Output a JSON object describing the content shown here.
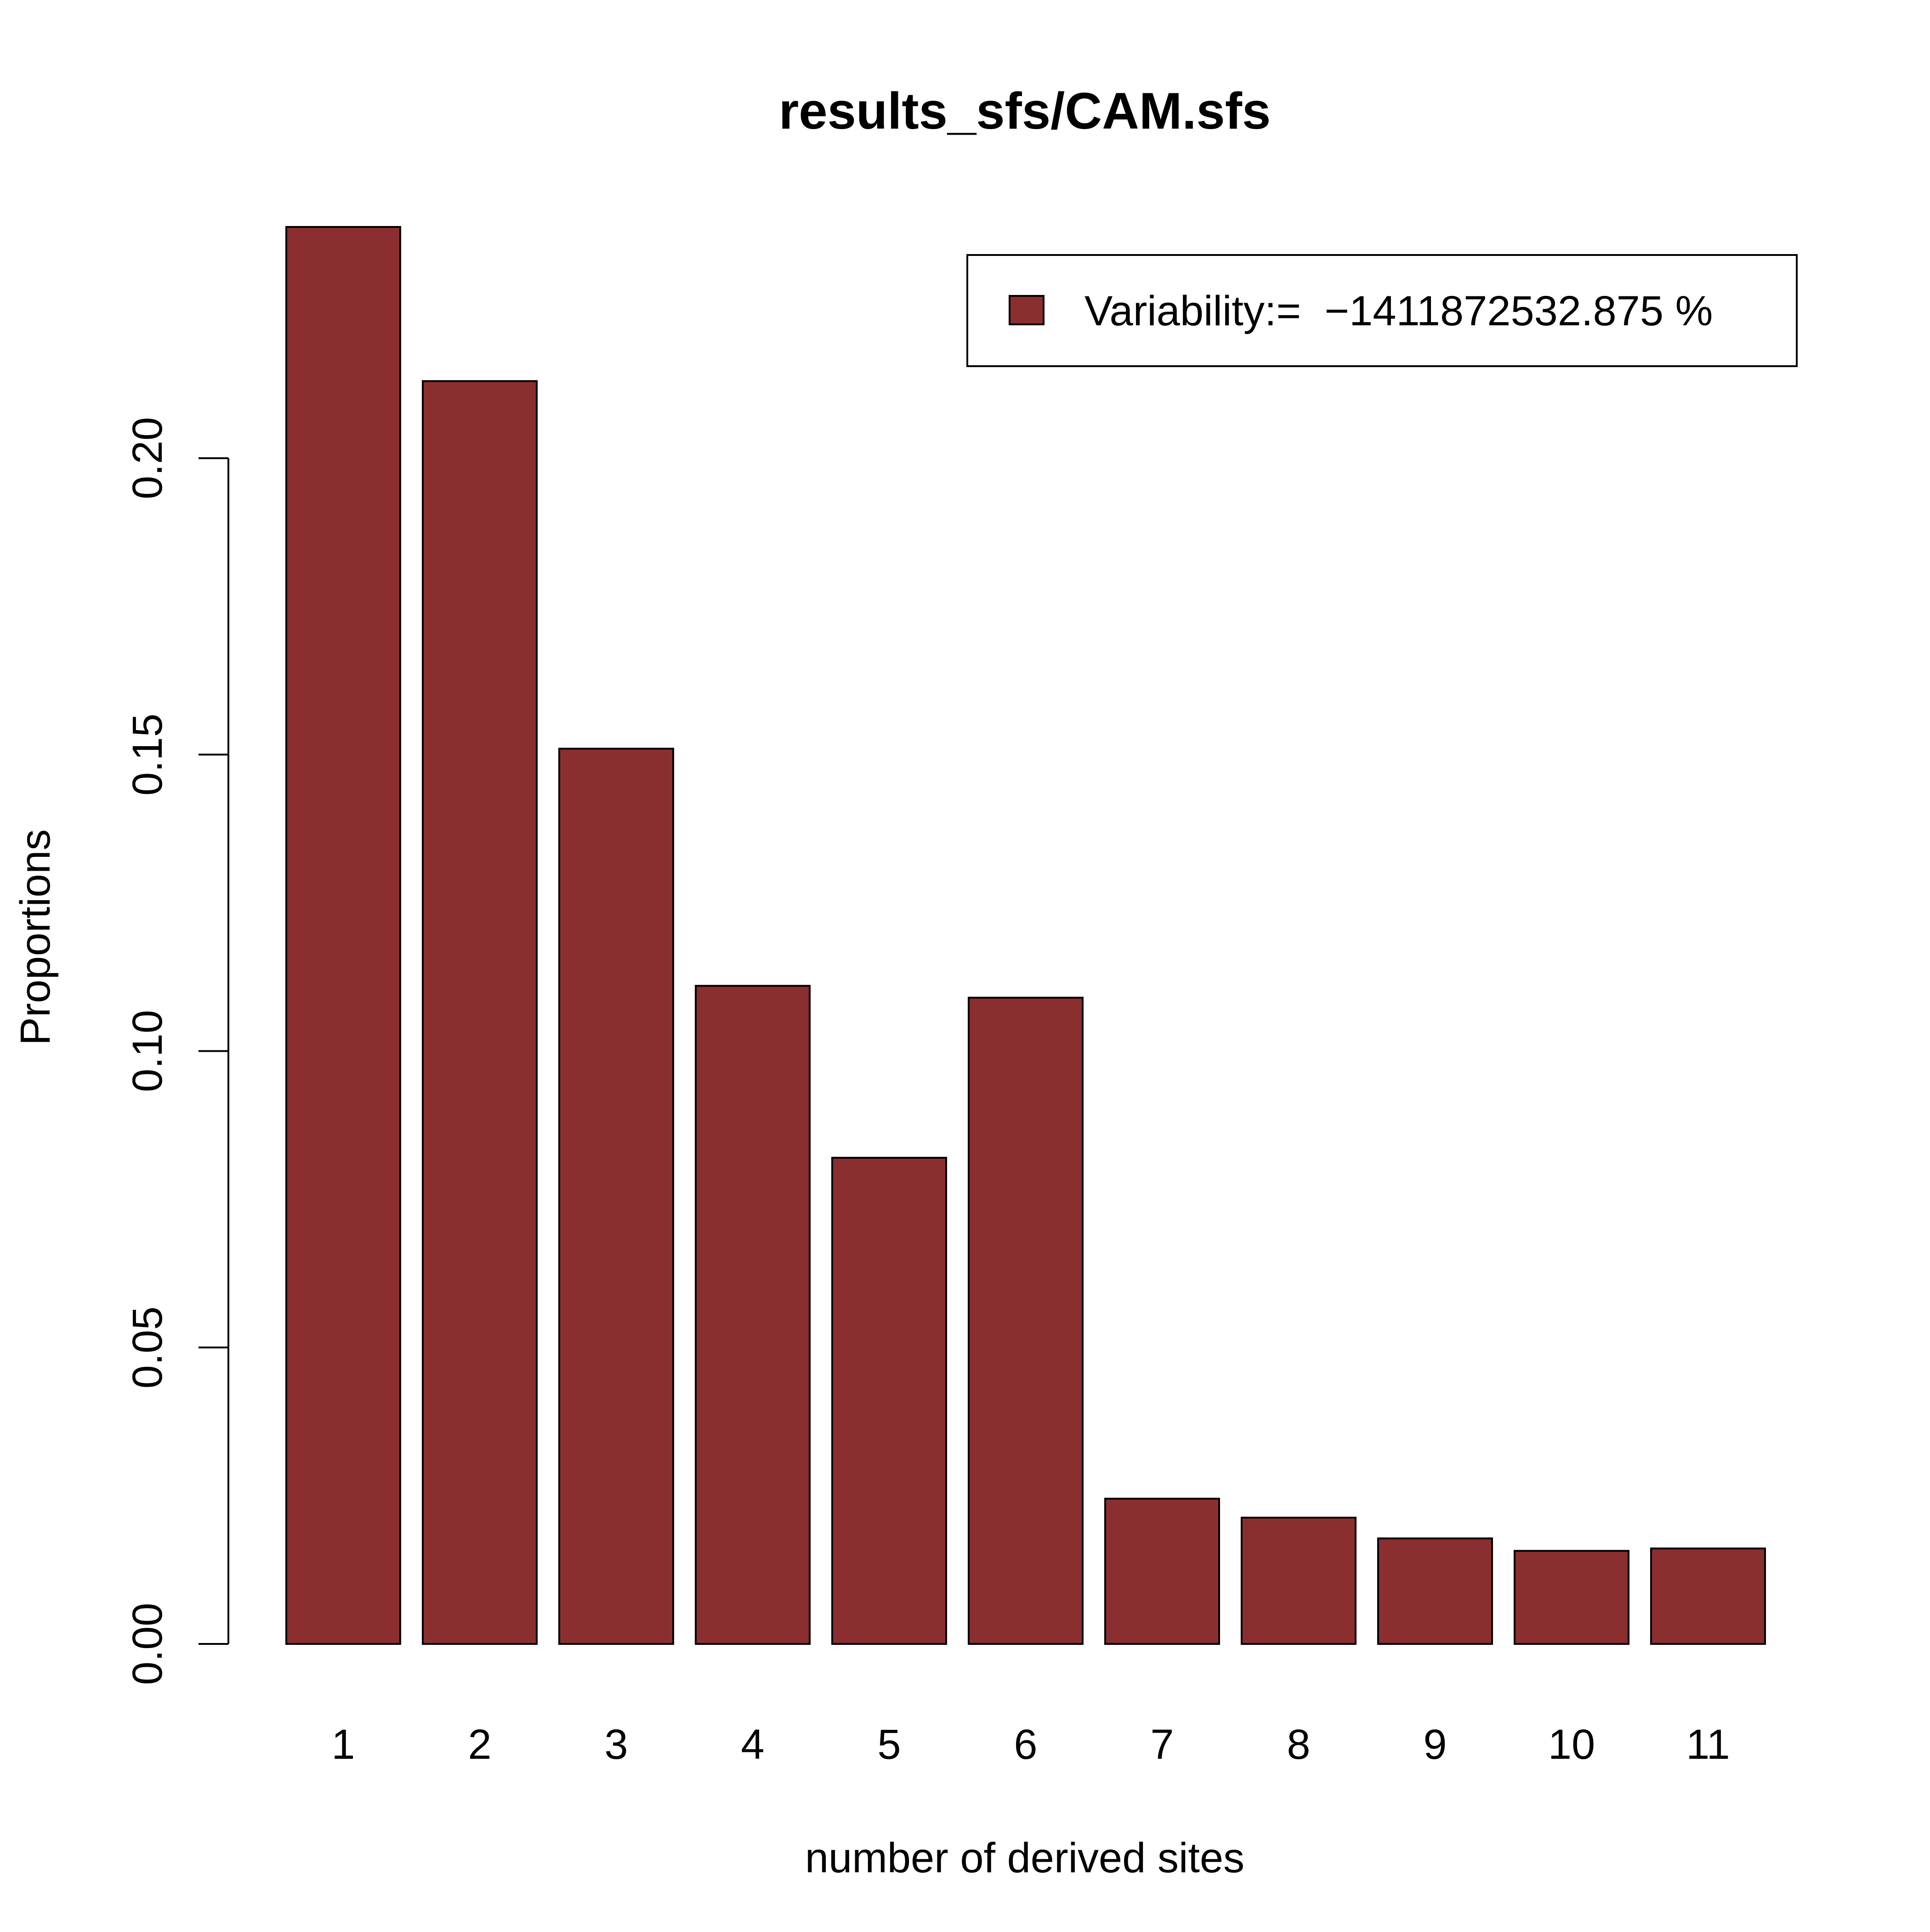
{
  "chart_data": {
    "type": "bar",
    "title": "results_sfs/CAM.sfs",
    "xlabel": "number of derived sites",
    "ylabel": "Proportions",
    "categories": [
      "1",
      "2",
      "3",
      "4",
      "5",
      "6",
      "7",
      "8",
      "9",
      "10",
      "11"
    ],
    "values": [
      0.239,
      0.213,
      0.151,
      0.111,
      0.082,
      0.109,
      0.0245,
      0.0213,
      0.0178,
      0.0157,
      0.0161
    ],
    "ylim": [
      0,
      0.25
    ],
    "yticks": [
      "0.00",
      "0.05",
      "0.10",
      "0.15",
      "0.20"
    ],
    "ytick_values": [
      0,
      0.05,
      0.1,
      0.15,
      0.2
    ],
    "grid": false,
    "legend": {
      "position": "top-right",
      "label": "Variability:=  −1411872532.875 %",
      "color": "#8b2e2f"
    },
    "bar_color": "#8b2e2f",
    "bar_border_color": "#000000"
  }
}
